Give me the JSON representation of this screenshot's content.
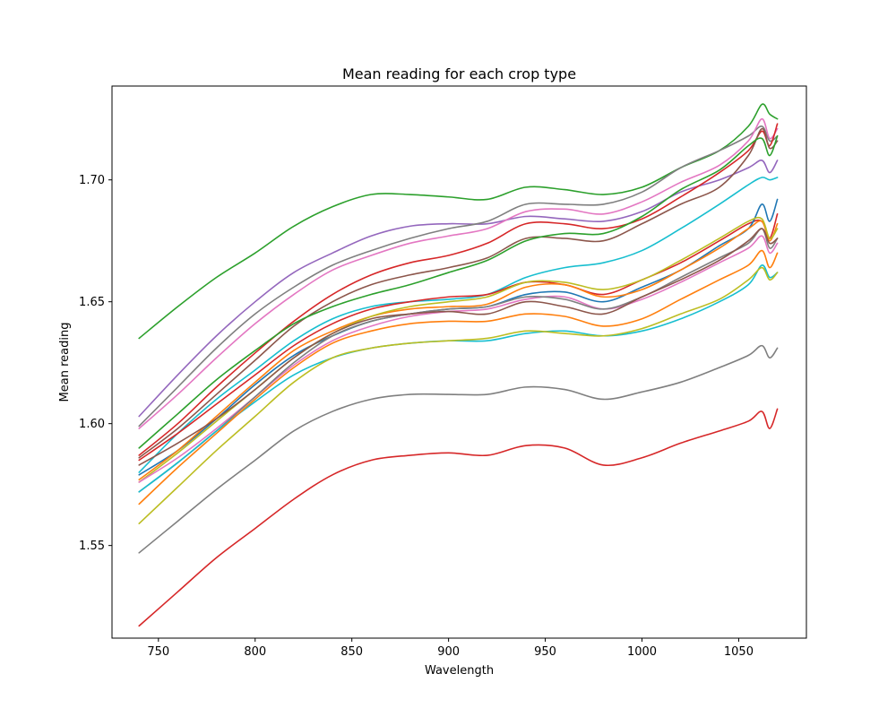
{
  "chart_data": {
    "type": "line",
    "title": "Mean reading for each crop type",
    "xlabel": "Wavelength",
    "ylabel": "Mean reading",
    "xlim": [
      726,
      1085
    ],
    "ylim": [
      1.512,
      1.7385
    ],
    "xticks": [
      750,
      800,
      850,
      900,
      950,
      1000,
      1050
    ],
    "xtick_labels": [
      "750",
      "800",
      "850",
      "900",
      "950",
      "1000",
      "1050"
    ],
    "yticks": [
      1.55,
      1.6,
      1.65,
      1.7
    ],
    "ytick_labels": [
      "1.55",
      "1.60",
      "1.65",
      "1.70"
    ],
    "grid": false,
    "x": [
      740,
      760,
      780,
      800,
      820,
      840,
      860,
      880,
      900,
      920,
      940,
      960,
      980,
      1000,
      1020,
      1040,
      1055,
      1062,
      1066,
      1070
    ],
    "series": [
      {
        "color": "#2ca02c",
        "values": [
          1.635,
          1.648,
          1.66,
          1.67,
          1.681,
          1.689,
          1.694,
          1.694,
          1.693,
          1.692,
          1.697,
          1.696,
          1.694,
          1.697,
          1.705,
          1.712,
          1.722,
          1.731,
          1.727,
          1.725
        ]
      },
      {
        "color": "#9467bd",
        "values": [
          1.603,
          1.62,
          1.636,
          1.65,
          1.662,
          1.67,
          1.677,
          1.681,
          1.682,
          1.682,
          1.685,
          1.684,
          1.683,
          1.687,
          1.695,
          1.7,
          1.705,
          1.708,
          1.703,
          1.708
        ]
      },
      {
        "color": "#7f7f7f",
        "values": [
          1.599,
          1.615,
          1.631,
          1.645,
          1.656,
          1.665,
          1.671,
          1.676,
          1.68,
          1.683,
          1.69,
          1.69,
          1.69,
          1.695,
          1.705,
          1.712,
          1.718,
          1.722,
          1.716,
          1.718
        ]
      },
      {
        "color": "#e377c2",
        "values": [
          1.598,
          1.612,
          1.627,
          1.641,
          1.653,
          1.663,
          1.669,
          1.674,
          1.677,
          1.68,
          1.687,
          1.688,
          1.686,
          1.691,
          1.699,
          1.706,
          1.716,
          1.725,
          1.717,
          1.721
        ]
      },
      {
        "color": "#d62728",
        "values": [
          1.587,
          1.6,
          1.615,
          1.629,
          1.642,
          1.653,
          1.661,
          1.666,
          1.669,
          1.674,
          1.682,
          1.682,
          1.68,
          1.684,
          1.693,
          1.703,
          1.712,
          1.72,
          1.714,
          1.723
        ]
      },
      {
        "color": "#8c564b",
        "values": [
          1.586,
          1.598,
          1.612,
          1.626,
          1.64,
          1.65,
          1.657,
          1.661,
          1.664,
          1.668,
          1.676,
          1.676,
          1.675,
          1.682,
          1.69,
          1.697,
          1.71,
          1.721,
          1.713,
          1.716
        ]
      },
      {
        "color": "#2ca02c",
        "values": [
          1.59,
          1.604,
          1.618,
          1.63,
          1.641,
          1.648,
          1.653,
          1.657,
          1.662,
          1.667,
          1.675,
          1.678,
          1.678,
          1.685,
          1.696,
          1.704,
          1.714,
          1.717,
          1.71,
          1.718
        ]
      },
      {
        "color": "#17becf",
        "values": [
          1.58,
          1.596,
          1.61,
          1.622,
          1.634,
          1.643,
          1.648,
          1.65,
          1.651,
          1.653,
          1.66,
          1.664,
          1.666,
          1.671,
          1.68,
          1.69,
          1.698,
          1.701,
          1.7,
          1.701
        ]
      },
      {
        "color": "#d62728",
        "values": [
          1.585,
          1.596,
          1.608,
          1.62,
          1.632,
          1.641,
          1.647,
          1.65,
          1.652,
          1.653,
          1.658,
          1.657,
          1.653,
          1.659,
          1.666,
          1.675,
          1.682,
          1.683,
          1.676,
          1.686
        ]
      },
      {
        "color": "#1f77b4",
        "values": [
          1.579,
          1.589,
          1.602,
          1.616,
          1.628,
          1.636,
          1.642,
          1.645,
          1.647,
          1.648,
          1.653,
          1.654,
          1.65,
          1.656,
          1.663,
          1.673,
          1.68,
          1.69,
          1.683,
          1.692
        ]
      },
      {
        "color": "#ff7f0e",
        "values": [
          1.577,
          1.589,
          1.603,
          1.617,
          1.63,
          1.638,
          1.644,
          1.647,
          1.648,
          1.649,
          1.656,
          1.657,
          1.652,
          1.655,
          1.663,
          1.672,
          1.68,
          1.683,
          1.675,
          1.682
        ]
      },
      {
        "color": "#bcbd22",
        "values": [
          1.576,
          1.588,
          1.601,
          1.614,
          1.627,
          1.637,
          1.644,
          1.648,
          1.65,
          1.652,
          1.658,
          1.658,
          1.655,
          1.659,
          1.667,
          1.676,
          1.683,
          1.684,
          1.676,
          1.68
        ]
      },
      {
        "color": "#e377c2",
        "values": [
          1.576,
          1.586,
          1.598,
          1.611,
          1.624,
          1.634,
          1.64,
          1.644,
          1.646,
          1.647,
          1.651,
          1.652,
          1.647,
          1.651,
          1.658,
          1.666,
          1.672,
          1.677,
          1.67,
          1.674
        ]
      },
      {
        "color": "#7f7f7f",
        "values": [
          1.572,
          1.584,
          1.597,
          1.611,
          1.625,
          1.636,
          1.642,
          1.645,
          1.647,
          1.648,
          1.652,
          1.651,
          1.647,
          1.652,
          1.66,
          1.668,
          1.674,
          1.68,
          1.672,
          1.676
        ]
      },
      {
        "color": "#8c564b",
        "values": [
          1.583,
          1.592,
          1.602,
          1.614,
          1.627,
          1.637,
          1.643,
          1.645,
          1.646,
          1.645,
          1.65,
          1.648,
          1.645,
          1.652,
          1.659,
          1.667,
          1.675,
          1.68,
          1.674,
          1.676
        ]
      },
      {
        "color": "#17becf",
        "values": [
          1.572,
          1.584,
          1.597,
          1.609,
          1.62,
          1.627,
          1.631,
          1.633,
          1.634,
          1.634,
          1.637,
          1.638,
          1.636,
          1.638,
          1.643,
          1.65,
          1.657,
          1.665,
          1.66,
          1.662
        ]
      },
      {
        "color": "#ff7f0e",
        "values": [
          1.567,
          1.582,
          1.596,
          1.61,
          1.623,
          1.633,
          1.638,
          1.641,
          1.642,
          1.642,
          1.645,
          1.644,
          1.64,
          1.643,
          1.651,
          1.659,
          1.665,
          1.671,
          1.664,
          1.67
        ]
      },
      {
        "color": "#bcbd22",
        "values": [
          1.559,
          1.574,
          1.589,
          1.603,
          1.617,
          1.627,
          1.631,
          1.633,
          1.634,
          1.635,
          1.638,
          1.637,
          1.636,
          1.639,
          1.645,
          1.651,
          1.659,
          1.664,
          1.659,
          1.662
        ]
      },
      {
        "color": "#7f7f7f",
        "values": [
          1.547,
          1.56,
          1.573,
          1.585,
          1.597,
          1.605,
          1.61,
          1.612,
          1.612,
          1.612,
          1.615,
          1.614,
          1.61,
          1.613,
          1.617,
          1.623,
          1.628,
          1.632,
          1.627,
          1.631
        ]
      },
      {
        "color": "#d62728",
        "values": [
          1.517,
          1.531,
          1.545,
          1.557,
          1.569,
          1.579,
          1.585,
          1.587,
          1.588,
          1.587,
          1.591,
          1.59,
          1.583,
          1.586,
          1.592,
          1.597,
          1.601,
          1.605,
          1.598,
          1.606
        ]
      }
    ]
  }
}
